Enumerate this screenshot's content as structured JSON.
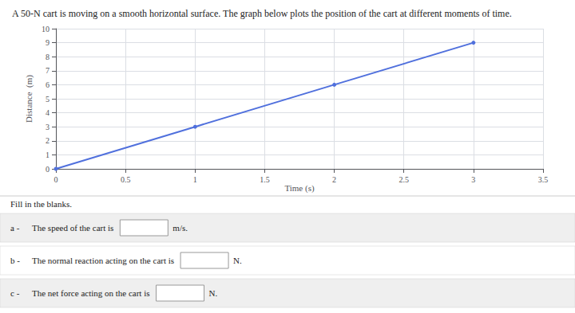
{
  "chart_data": {
    "type": "line",
    "title": "A 50-N cart is moving on a smooth horizontal surface. The graph below plots the position of the cart at different moments of time.",
    "x": [
      0,
      1,
      2,
      3
    ],
    "values": [
      0,
      3,
      6,
      9
    ],
    "xlabel": "Time (s)",
    "ylabel": "Distance  (m)",
    "xlim": [
      0,
      3.5
    ],
    "ylim": [
      0,
      10
    ],
    "xticks": [
      0,
      0.5,
      1,
      1.5,
      2,
      2.5,
      3,
      3.5
    ],
    "yticks": [
      0,
      1,
      2,
      3,
      4,
      5,
      6,
      7,
      8,
      9,
      10
    ],
    "grid": true,
    "marker": "circle",
    "annotations": [
      {
        "text": "Fill in the blanks."
      },
      {
        "label": "a -",
        "text": "The speed of the cart is",
        "suffix": "m/s."
      },
      {
        "label": "b -",
        "text": "The normal reaction acting on the cart is",
        "suffix": "N."
      },
      {
        "label": "c -",
        "text": "The net force acting on the cart is",
        "suffix": "N."
      }
    ]
  }
}
